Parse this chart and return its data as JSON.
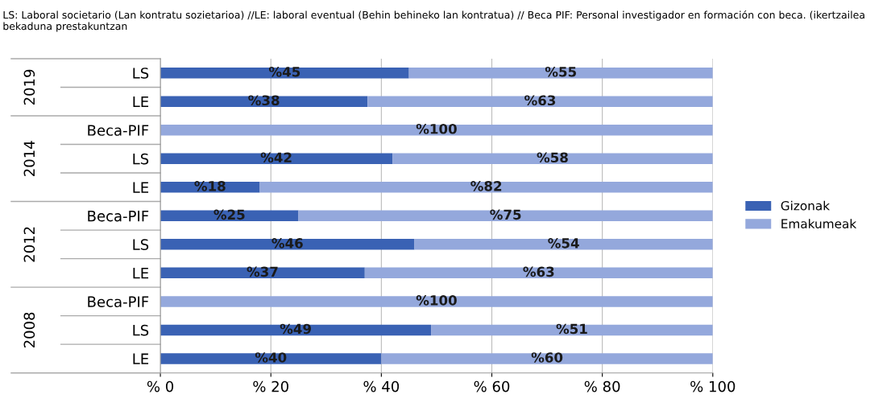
{
  "chart_data": {
    "type": "bar",
    "orientation": "horizontal",
    "stacked": true,
    "categories": [
      "LS",
      "LE",
      "Beca-PIF",
      "LS",
      "LE",
      "Beca-PIF",
      "LS",
      "LE",
      "Beca-PIF",
      "LS",
      "LE"
    ],
    "series": [
      {
        "name": "Gizonak",
        "color": "#3a62b4",
        "values": [
          45,
          37.5,
          0,
          42,
          18,
          25,
          46,
          37,
          0,
          49,
          40
        ],
        "value_labels": [
          "%45",
          "%38",
          null,
          "%42",
          "%18",
          "%25",
          "%46",
          "%37",
          null,
          "%49",
          "%40"
        ]
      },
      {
        "name": "Emakumeak",
        "color": "#94a8dc",
        "values": [
          55,
          62.5,
          100,
          58,
          82,
          75,
          54,
          63,
          100,
          51,
          60
        ],
        "value_labels": [
          "%55",
          "%63",
          "%100",
          "%58",
          "%82",
          "%75",
          "%54",
          "%63",
          "%100",
          "%51",
          "%60"
        ]
      }
    ],
    "xlim": [
      0,
      100
    ],
    "xticks": [
      {
        "value": 0,
        "label": "% 0"
      },
      {
        "value": 20,
        "label": "% 20"
      },
      {
        "value": 40,
        "label": "% 40"
      },
      {
        "value": 60,
        "label": "% 60"
      },
      {
        "value": 80,
        "label": "% 80"
      },
      {
        "value": 100,
        "label": "% 100"
      }
    ],
    "grid": "x",
    "legend": "right",
    "annotations": [
      "LS: Laboral societario (Lan kontratu sozietarioa) //LE: laboral eventual (Behin behineko lan kontratua) // Beca PIF: Personal investigador en formación con beca. (ikertzailea bekaduna prestakuntzan",
      "2019",
      "2014",
      "2012",
      "2008"
    ]
  }
}
